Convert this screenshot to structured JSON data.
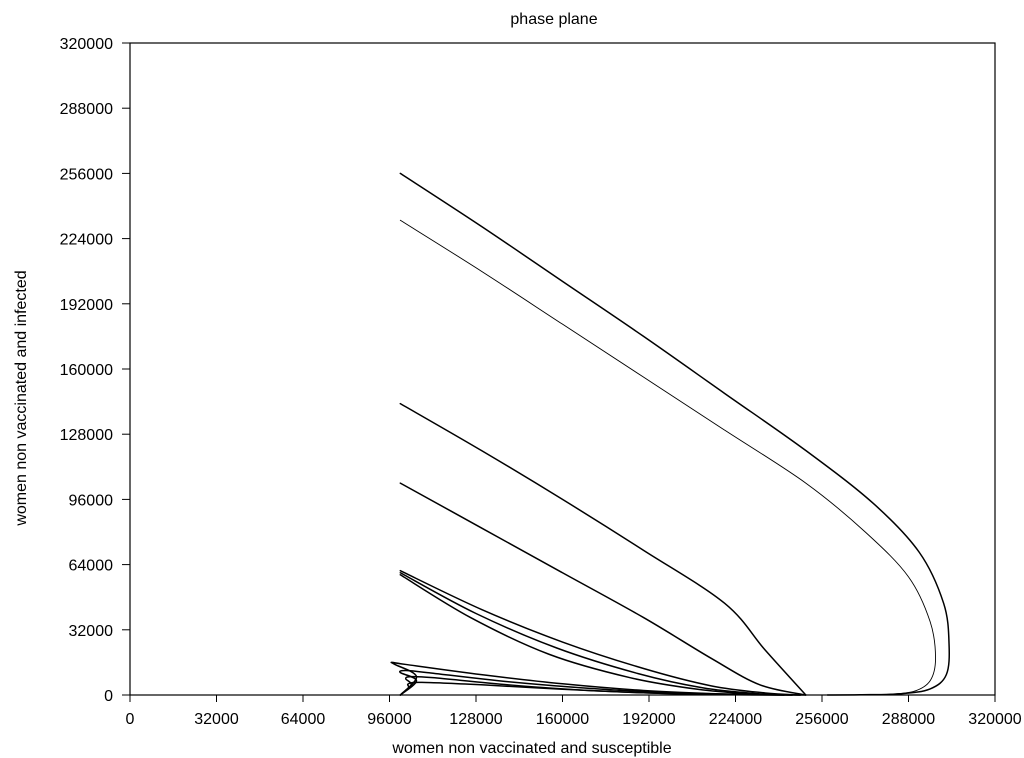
{
  "chart_data": {
    "type": "line",
    "title": "phase plane",
    "xlabel": "women non vaccinated and susceptible",
    "ylabel": "women non vaccinated and infected",
    "xlim": [
      0,
      320000
    ],
    "ylim": [
      0,
      320000
    ],
    "xticks": [
      0,
      32000,
      64000,
      96000,
      128000,
      160000,
      192000,
      224000,
      256000,
      288000,
      320000
    ],
    "yticks": [
      0,
      32000,
      64000,
      96000,
      128000,
      160000,
      192000,
      224000,
      256000,
      288000,
      320000
    ],
    "grid": false,
    "line_color": "#000000",
    "series": [
      {
        "x": [
          100000,
          130000,
          160000,
          190000,
          220000,
          250000,
          275000,
          292000,
          301000,
          303000,
          302000,
          296000,
          285000,
          270000,
          258000
        ],
        "y": [
          256000,
          230000,
          203000,
          176000,
          148000,
          120000,
          94000,
          70000,
          45000,
          25000,
          10000,
          3000,
          600,
          100,
          0
        ]
      },
      {
        "x": [
          100000,
          130000,
          160000,
          190000,
          220000,
          250000,
          272000,
          288000,
          296000,
          298000,
          296000,
          290000,
          280000,
          268000,
          258000
        ],
        "y": [
          233000,
          208000,
          182000,
          156000,
          130000,
          104000,
          80000,
          58000,
          36000,
          18000,
          7000,
          1800,
          300,
          50,
          0
        ]
      },
      {
        "x": [
          100000,
          130000,
          160000,
          190000,
          220000,
          235000,
          250000
        ],
        "y": [
          143000,
          120000,
          96000,
          71000,
          45000,
          22000,
          0
        ]
      },
      {
        "x": [
          100000,
          130000,
          160000,
          190000,
          215000,
          233000,
          250000
        ],
        "y": [
          104000,
          82000,
          60000,
          38000,
          18000,
          5000,
          0
        ]
      },
      {
        "x": [
          100000,
          130000,
          160000,
          190000,
          215000,
          235000,
          248000
        ],
        "y": [
          61000,
          42000,
          26000,
          13000,
          4500,
          1000,
          0
        ]
      },
      {
        "x": [
          100000,
          128000,
          158000,
          188000,
          212000,
          232000,
          245000
        ],
        "y": [
          60000,
          40000,
          23000,
          10500,
          3500,
          700,
          0
        ]
      },
      {
        "x": [
          100000,
          126000,
          155000,
          185000,
          210000,
          230000,
          242000
        ],
        "y": [
          59000,
          38000,
          20000,
          8500,
          2800,
          500,
          0
        ]
      },
      {
        "x": [
          100000,
          106000,
          98000,
          97000,
          102000,
          130000,
          160000,
          190000,
          215000,
          235000,
          250000
        ],
        "y": [
          0,
          9000,
          15000,
          16000,
          15000,
          10000,
          5500,
          2200,
          700,
          150,
          0
        ]
      },
      {
        "x": [
          100000,
          106000,
          100000,
          102000,
          110000,
          140000,
          175000,
          205000,
          230000,
          248000
        ],
        "y": [
          0,
          7000,
          11000,
          12000,
          11000,
          6500,
          2800,
          900,
          200,
          0
        ]
      },
      {
        "x": [
          100000,
          104000,
          102000,
          104000,
          112000,
          140000,
          170000,
          200000,
          225000,
          245000
        ],
        "y": [
          0,
          5000,
          8000,
          9000,
          8500,
          5000,
          2200,
          700,
          150,
          0
        ]
      },
      {
        "x": [
          100000,
          103000,
          103000,
          108000,
          130000,
          160000,
          190000,
          220000,
          242000
        ],
        "y": [
          0,
          3500,
          5500,
          6200,
          5000,
          2800,
          1100,
          250,
          0
        ]
      }
    ]
  }
}
